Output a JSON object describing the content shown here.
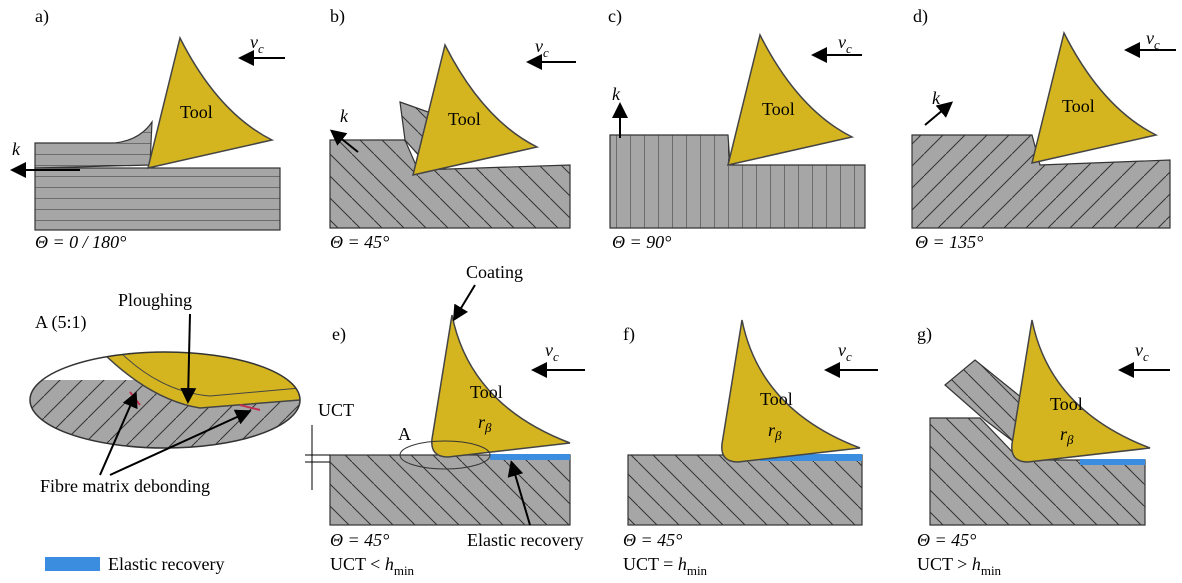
{
  "top_panels": [
    {
      "label": "a)",
      "tool": "Tool",
      "velocity": {
        "symbol": "v",
        "subscript": "c"
      },
      "direction": "k",
      "angle": "Θ = 0 / 180°"
    },
    {
      "label": "b)",
      "tool": "Tool",
      "velocity": {
        "symbol": "v",
        "subscript": "c"
      },
      "direction": "k",
      "angle": "Θ = 45°"
    },
    {
      "label": "c)",
      "tool": "Tool",
      "velocity": {
        "symbol": "v",
        "subscript": "c"
      },
      "direction": "k",
      "angle": "Θ = 90°"
    },
    {
      "label": "d)",
      "tool": "Tool",
      "velocity": {
        "symbol": "v",
        "subscript": "c"
      },
      "direction": "k",
      "angle": "Θ = 135°"
    }
  ],
  "bottom_panels": [
    {
      "label": "e)",
      "tool": "Tool",
      "velocity": {
        "symbol": "v",
        "subscript": "c"
      },
      "radius": {
        "symbol": "r",
        "subscript": "β"
      },
      "angle": "Θ = 45°",
      "condition": {
        "text": "UCT < ",
        "symbol": "h",
        "subscript": "min"
      }
    },
    {
      "label": "f)",
      "tool": "Tool",
      "velocity": {
        "symbol": "v",
        "subscript": "c"
      },
      "radius": {
        "symbol": "r",
        "subscript": "β"
      },
      "angle": "Θ = 45°",
      "condition": {
        "text": "UCT = ",
        "symbol": "h",
        "subscript": "min"
      }
    },
    {
      "label": "g)",
      "tool": "Tool",
      "velocity": {
        "symbol": "v",
        "subscript": "c"
      },
      "radius": {
        "symbol": "r",
        "subscript": "β"
      },
      "angle": "Θ = 45°",
      "condition": {
        "text": "UCT > ",
        "symbol": "h",
        "subscript": "min"
      }
    }
  ],
  "annotations": {
    "coating": "Coating",
    "detail_marker": "A",
    "uct": "UCT",
    "elastic_recovery": "Elastic recovery"
  },
  "detail": {
    "title": "A (5:1)",
    "ploughing": "Ploughing",
    "debonding": "Fibre matrix debonding"
  },
  "legend": {
    "label": "Elastic recovery"
  }
}
